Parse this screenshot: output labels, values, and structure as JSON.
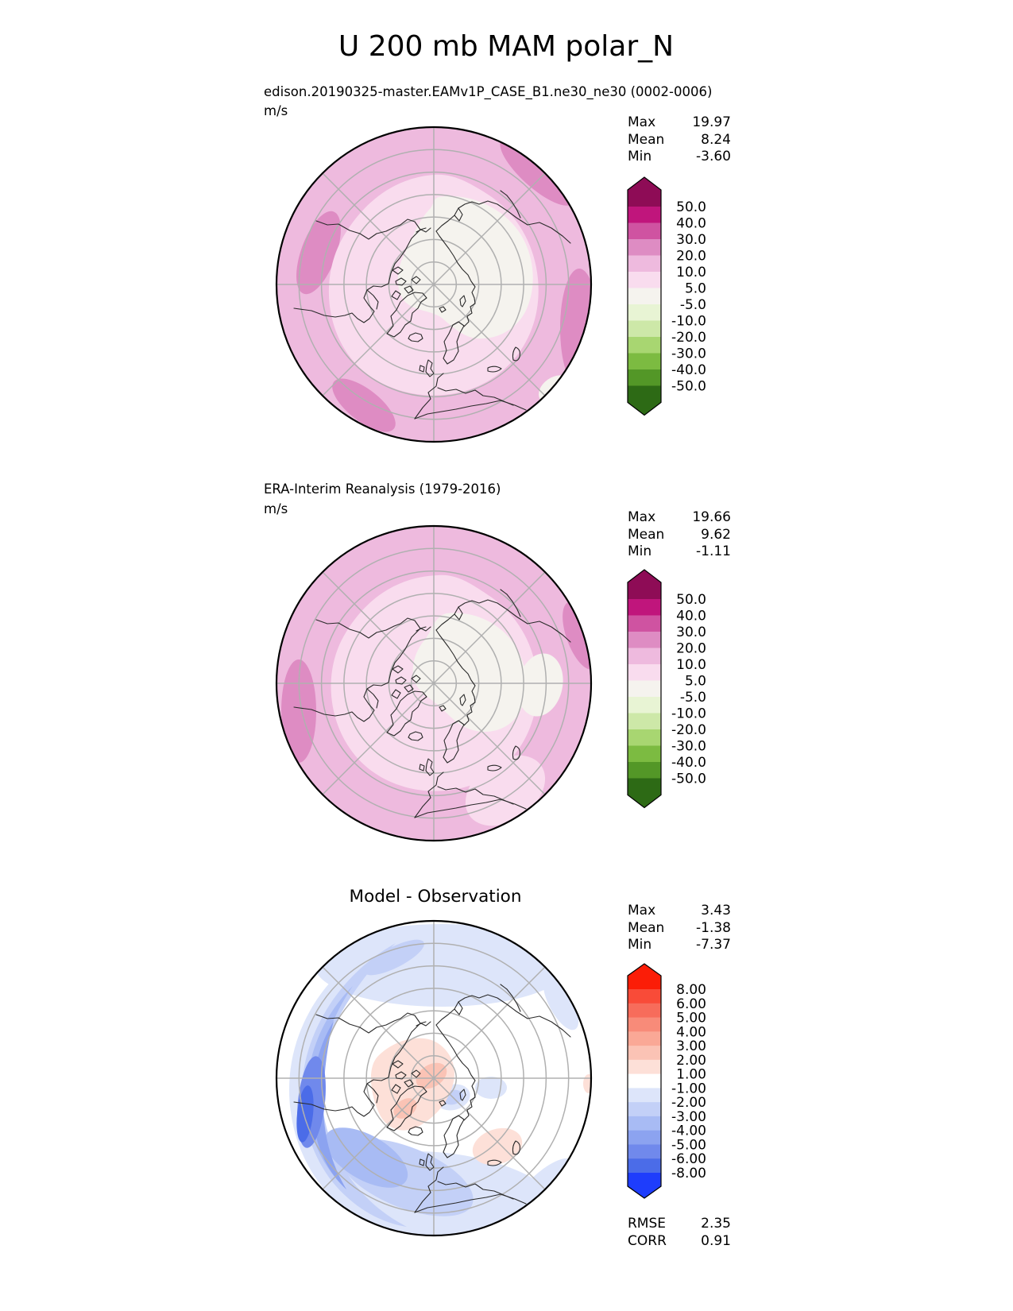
{
  "title": "U 200 mb MAM polar_N",
  "colors": {
    "background": "#ffffff",
    "text": "#000000",
    "coastline": "#2a2a2a",
    "graticule": "#b0b0b0",
    "map_outline": "#000000"
  },
  "panels": {
    "model": {
      "subtitle": "edison.20190325-master.EAMv1P_CASE_B1.ne30_ne30 (0002-0006)",
      "units": "m/s",
      "stats": {
        "rows": [
          {
            "label": "Max",
            "value": "19.97"
          },
          {
            "label": "Mean",
            "value": "8.24"
          },
          {
            "label": "Min",
            "value": "-3.60"
          }
        ]
      }
    },
    "obs": {
      "subtitle": "ERA-Interim Reanalysis (1979-2016)",
      "units": "m/s",
      "stats": {
        "rows": [
          {
            "label": "Max",
            "value": "19.66"
          },
          {
            "label": "Mean",
            "value": "9.62"
          },
          {
            "label": "Min",
            "value": "-1.11"
          }
        ]
      }
    },
    "diff": {
      "subtitle": "Model - Observation",
      "stats": {
        "rows": [
          {
            "label": "Max",
            "value": "3.43"
          },
          {
            "label": "Mean",
            "value": "-1.38"
          },
          {
            "label": "Min",
            "value": "-7.37"
          }
        ]
      },
      "metrics": {
        "rows": [
          {
            "label": "RMSE",
            "value": "2.35"
          },
          {
            "label": "CORR",
            "value": "0.91"
          }
        ]
      }
    }
  },
  "palettes": {
    "piyg": {
      "labels": [
        "50.0",
        "40.0",
        "30.0",
        "20.0",
        "10.0",
        "5.0",
        "-5.0",
        "-10.0",
        "-20.0",
        "-30.0",
        "-40.0",
        "-50.0"
      ],
      "colors": [
        "#8e0c56",
        "#c0157c",
        "#cf53a1",
        "#de8cc3",
        "#eebade",
        "#f9dcee",
        "#f5f3ee",
        "#e8f4d4",
        "#cde8a8",
        "#a8d671",
        "#7cbb41",
        "#539727",
        "#2d6a15"
      ]
    },
    "rwb": {
      "labels": [
        "8.00",
        "6.00",
        "5.00",
        "4.00",
        "3.00",
        "2.00",
        "1.00",
        "-1.00",
        "-2.00",
        "-3.00",
        "-4.00",
        "-5.00",
        "-6.00",
        "-8.00"
      ],
      "colors": [
        "#fb1d07",
        "#f94b38",
        "#f76c5b",
        "#f88b79",
        "#faa896",
        "#fbc3b5",
        "#fde0d8",
        "#ffffff",
        "#dde5fa",
        "#c3d0f7",
        "#a8bbf4",
        "#8ca3f0",
        "#7089ec",
        "#4b6ce8",
        "#1e3dfc"
      ]
    }
  },
  "chart_data": [
    {
      "type": "heatmap",
      "subtype": "polar-stereographic-contour-map",
      "title": "edison.20190325-master.EAMv1P_CASE_B1.ne30_ne30 (0002-0006)",
      "variable": "U",
      "level": "200 mb",
      "season": "MAM",
      "region": "polar_N",
      "units": "m/s",
      "stats": {
        "max": 19.97,
        "mean": 8.24,
        "min": -3.6
      },
      "contour_levels": [
        -50,
        -40,
        -30,
        -20,
        -10,
        -5,
        5,
        10,
        20,
        30,
        40,
        50
      ],
      "colormap": "pink-white-green (PiYG reversed: pink = positive, green = negative)",
      "colorbar_extend": "both",
      "legend_position": "right",
      "grid": "polar graticule, latitude circles every 10 deg, meridians every 45 deg"
    },
    {
      "type": "heatmap",
      "subtype": "polar-stereographic-contour-map",
      "title": "ERA-Interim Reanalysis (1979-2016)",
      "variable": "U",
      "level": "200 mb",
      "season": "MAM",
      "region": "polar_N",
      "units": "m/s",
      "stats": {
        "max": 19.66,
        "mean": 9.62,
        "min": -1.11
      },
      "contour_levels": [
        -50,
        -40,
        -30,
        -20,
        -10,
        -5,
        5,
        10,
        20,
        30,
        40,
        50
      ],
      "colormap": "pink-white-green (PiYG reversed: pink = positive, green = negative)",
      "colorbar_extend": "both",
      "legend_position": "right",
      "grid": "polar graticule, latitude circles every 10 deg, meridians every 45 deg"
    },
    {
      "type": "heatmap",
      "subtype": "polar-stereographic-contour-map",
      "title": "Model - Observation",
      "variable": "U difference",
      "level": "200 mb",
      "season": "MAM",
      "region": "polar_N",
      "stats": {
        "max": 3.43,
        "mean": -1.38,
        "min": -7.37
      },
      "rmse": 2.35,
      "corr": 0.91,
      "contour_levels": [
        -8,
        -6,
        -5,
        -4,
        -3,
        -2,
        -1,
        1,
        2,
        3,
        4,
        5,
        6,
        8
      ],
      "colormap": "blue-white-red (red = positive bias, blue = negative bias)",
      "colorbar_extend": "both",
      "legend_position": "right",
      "grid": "polar graticule, latitude circles every 10 deg, meridians every 45 deg"
    }
  ]
}
